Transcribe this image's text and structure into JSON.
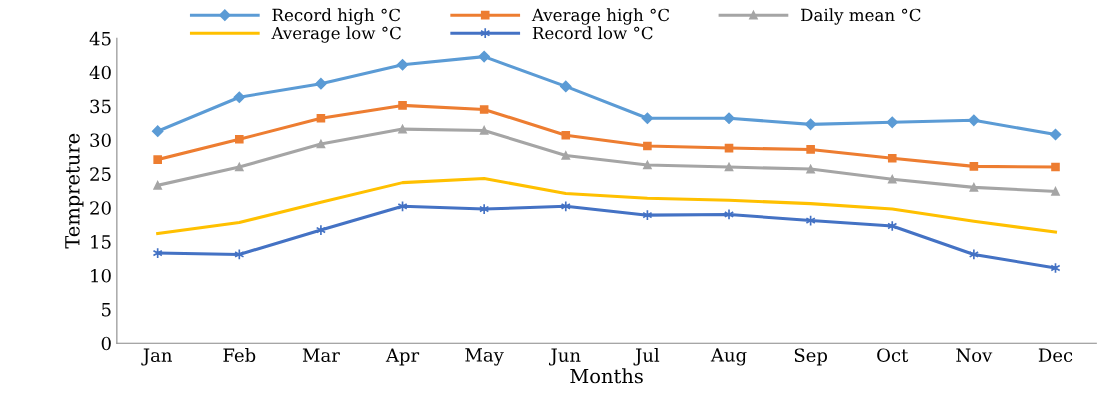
{
  "chart_data": {
    "type": "line",
    "xlabel": "Months",
    "ylabel": "Tempreture",
    "categories": [
      "Jan",
      "Feb",
      "Mar",
      "Apr",
      "May",
      "Jun",
      "Jul",
      "Aug",
      "Sep",
      "Oct",
      "Nov",
      "Dec"
    ],
    "ylim": [
      0,
      45
    ],
    "yticks": [
      0,
      5,
      10,
      15,
      20,
      25,
      30,
      35,
      40,
      45
    ],
    "grid": false,
    "legend": "top",
    "series": [
      {
        "name": "Record high °C",
        "color": "#5b9bd5",
        "marker": "diamond",
        "values": [
          31.3,
          36.3,
          38.3,
          41.1,
          42.3,
          37.9,
          33.2,
          33.2,
          32.3,
          32.6,
          32.9,
          30.8
        ]
      },
      {
        "name": "Average high °C",
        "color": "#ed7d31",
        "marker": "square",
        "values": [
          27.1,
          30.1,
          33.2,
          35.1,
          34.5,
          30.7,
          29.1,
          28.8,
          28.6,
          27.3,
          26.1,
          26.0
        ]
      },
      {
        "name": "Daily mean °C",
        "color": "#a5a5a5",
        "marker": "triangle",
        "values": [
          23.3,
          26.0,
          29.4,
          31.6,
          31.4,
          27.7,
          26.3,
          26.0,
          25.7,
          24.2,
          23.0,
          22.4
        ]
      },
      {
        "name": "Average low °C",
        "color": "#ffc000",
        "marker": "none",
        "values": [
          16.2,
          17.8,
          20.8,
          23.7,
          24.3,
          22.1,
          21.4,
          21.1,
          20.6,
          19.8,
          18.0,
          16.4
        ]
      },
      {
        "name": "Record low °C",
        "color": "#4472c4",
        "marker": "cross",
        "values": [
          13.3,
          13.1,
          16.7,
          20.2,
          19.8,
          20.2,
          18.9,
          19.0,
          18.1,
          17.3,
          13.1,
          11.1
        ]
      }
    ]
  }
}
